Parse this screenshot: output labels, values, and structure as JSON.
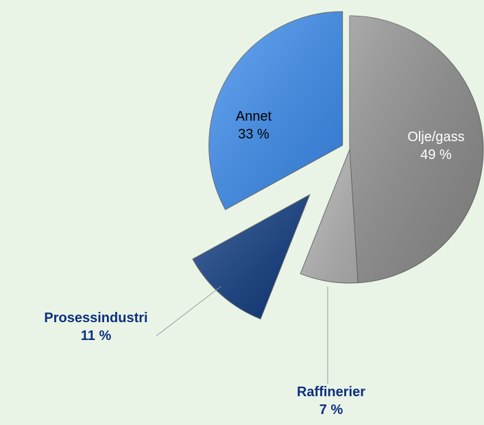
{
  "chart_data": {
    "type": "pie",
    "categories": [
      "Olje/gass",
      "Raffinerier",
      "Prosessindustri",
      "Annet"
    ],
    "values": [
      49,
      7,
      11,
      33
    ],
    "value_labels": [
      "49 %",
      "7 %",
      "11 %",
      "33 %"
    ],
    "colors": [
      "#8e8e8e",
      "#b8b8b8",
      "#0e3b82",
      "#3b8ef2"
    ]
  }
}
